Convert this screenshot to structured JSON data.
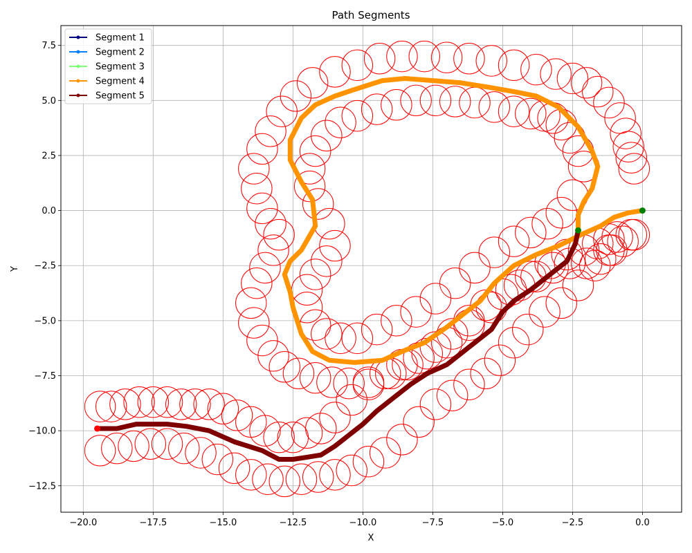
{
  "chart_data": {
    "type": "line",
    "title": "Path Segments",
    "xlabel": "X",
    "ylabel": "Y",
    "xlim": [
      -20.8,
      1.4
    ],
    "ylim": [
      -13.7,
      8.4
    ],
    "xticks": [
      -20.0,
      -17.5,
      -15.0,
      -12.5,
      -10.0,
      -7.5,
      -5.0,
      -2.5,
      0.0
    ],
    "yticks": [
      -12.5,
      -10.0,
      -7.5,
      -5.0,
      -2.5,
      0.0,
      2.5,
      5.0,
      7.5
    ],
    "xtick_labels": [
      "−20.0",
      "−17.5",
      "−15.0",
      "−12.5",
      "−10.0",
      "−7.5",
      "−5.0",
      "−2.5",
      "0.0"
    ],
    "ytick_labels": [
      "−12.5",
      "−10.0",
      "−7.5",
      "−5.0",
      "−2.5",
      "0.0",
      "2.5",
      "5.0",
      "7.5"
    ],
    "grid": true,
    "legend_position": "top-left",
    "circle_color": "#ff0000",
    "circle_radius": 0.55,
    "series": [
      {
        "name": "Segment 1",
        "color": "#00007f",
        "x": [],
        "y": []
      },
      {
        "name": "Segment 2",
        "color": "#0080ff",
        "x": [],
        "y": []
      },
      {
        "name": "Segment 3",
        "color": "#7dff7a",
        "x": [],
        "y": []
      },
      {
        "name": "Segment 4",
        "color": "#ff9400",
        "x": [
          0.0,
          -0.5,
          -1.0,
          -1.5,
          -2.2,
          -3.0,
          -3.8,
          -4.6,
          -5.3,
          -5.8,
          -6.4,
          -7.0,
          -7.8,
          -8.6,
          -9.3,
          -10.3,
          -11.2,
          -11.8,
          -12.2,
          -12.5,
          -12.6,
          -12.8,
          -12.6,
          -12.2,
          -11.7,
          -11.8,
          -12.2,
          -12.6,
          -12.6,
          -12.2,
          -11.7,
          -11.0,
          -10.3,
          -9.3,
          -8.5,
          -7.5,
          -6.5,
          -5.5,
          -4.6,
          -3.8,
          -3.0,
          -2.3,
          -1.8,
          -1.6,
          -1.8,
          -2.1,
          -2.3,
          -2.3
        ],
        "y": [
          0.0,
          -0.1,
          -0.3,
          -0.7,
          -1.1,
          -1.6,
          -2.0,
          -2.5,
          -3.3,
          -4.1,
          -4.7,
          -5.3,
          -6.0,
          -6.4,
          -6.8,
          -6.9,
          -6.8,
          -6.4,
          -5.6,
          -4.4,
          -3.7,
          -2.9,
          -2.3,
          -1.8,
          -0.7,
          0.5,
          1.3,
          2.3,
          3.2,
          4.2,
          4.8,
          5.2,
          5.5,
          5.9,
          6.0,
          5.9,
          5.8,
          5.6,
          5.4,
          5.2,
          4.7,
          3.8,
          2.7,
          2.0,
          1.0,
          0.4,
          -0.2,
          -0.9
        ]
      },
      {
        "name": "Segment 5",
        "color": "#7f0000",
        "x": [
          -2.3,
          -2.4,
          -2.7,
          -3.2,
          -4.0,
          -4.6,
          -5.0,
          -5.4,
          -6.3,
          -7.0,
          -7.7,
          -8.3,
          -8.9,
          -9.5,
          -10.0,
          -10.6,
          -11.0,
          -11.5,
          -12.0,
          -12.5,
          -13.0,
          -13.6,
          -14.6,
          -15.5,
          -16.3,
          -17.0,
          -17.5,
          -18.1,
          -18.8,
          -19.5
        ],
        "y": [
          -0.9,
          -1.5,
          -2.3,
          -2.8,
          -3.6,
          -4.1,
          -4.6,
          -5.4,
          -6.3,
          -7.0,
          -7.4,
          -7.9,
          -8.5,
          -9.1,
          -9.7,
          -10.3,
          -10.7,
          -11.1,
          -11.2,
          -11.3,
          -11.3,
          -10.9,
          -10.5,
          -10.0,
          -9.8,
          -9.7,
          -9.7,
          -9.7,
          -9.9,
          -9.9
        ]
      }
    ],
    "markers": [
      {
        "x": 0.0,
        "y": 0.0,
        "color": "#008000"
      },
      {
        "x": -2.3,
        "y": -0.9,
        "color": "#008000"
      },
      {
        "x": -19.5,
        "y": -9.9,
        "color": "#ff0000"
      }
    ],
    "circles_outer": {
      "x": [
        -0.3,
        -0.4,
        -0.5,
        -0.6,
        -0.8,
        -1.2,
        -1.6,
        -2.0,
        -2.5,
        -3.1,
        -3.8,
        -4.6,
        -5.4,
        -6.2,
        -7.0,
        -7.8,
        -8.6,
        -9.4,
        -10.2,
        -11.0,
        -11.8,
        -12.4,
        -12.9,
        -13.3,
        -13.6,
        -13.9,
        -13.8,
        -13.6,
        -13.3,
        -13.0,
        -13.2,
        -13.5,
        -13.8,
        -14.0,
        -13.9,
        -13.6,
        -13.2,
        -12.8,
        -12.3,
        -11.7,
        -11.1,
        -10.5,
        -9.8,
        -9.0,
        -8.4,
        -7.7,
        -7.0,
        -6.2,
        -5.4,
        -4.7,
        -4.0,
        -3.3,
        -2.7,
        -2.1,
        -1.6,
        -1.2,
        -0.9,
        -0.4
      ],
      "y": [
        1.9,
        2.4,
        2.9,
        3.5,
        4.2,
        4.9,
        5.4,
        5.8,
        6.0,
        6.2,
        6.4,
        6.6,
        6.8,
        6.9,
        6.95,
        7.0,
        7.0,
        6.9,
        6.6,
        6.3,
        5.8,
        5.2,
        4.5,
        3.6,
        2.8,
        1.9,
        1.0,
        0.1,
        -0.6,
        -1.1,
        -1.8,
        -2.6,
        -3.3,
        -4.2,
        -5.1,
        -5.9,
        -6.6,
        -7.1,
        -7.4,
        -7.6,
        -7.8,
        -7.85,
        -7.8,
        -7.4,
        -7.0,
        -6.5,
        -6.0,
        -5.2,
        -4.4,
        -3.6,
        -3.0,
        -2.4,
        -2.0,
        -1.8,
        -1.5,
        -1.3,
        -1.2,
        -1.1
      ]
    },
    "circles_inner": {
      "x": [
        -2.1,
        -2.3,
        -2.6,
        -2.9,
        -3.2,
        -3.5,
        -4.0,
        -4.6,
        -5.3,
        -6.0,
        -6.7,
        -7.4,
        -8.1,
        -8.8,
        -9.5,
        -10.2,
        -10.8,
        -11.3,
        -11.7,
        -11.9,
        -11.9,
        -11.6,
        -11.2,
        -11.0,
        -11.3,
        -11.7,
        -12.0,
        -12.0,
        -11.7,
        -11.3,
        -10.8,
        -10.2,
        -9.5,
        -8.8,
        -8.1,
        -7.4,
        -6.7,
        -6.0,
        -5.3,
        -4.6,
        -4.0,
        -3.4,
        -2.9,
        -2.5
      ],
      "y": [
        2.0,
        2.7,
        3.3,
        3.9,
        4.2,
        4.3,
        4.4,
        4.5,
        4.7,
        4.9,
        4.95,
        5.0,
        5.0,
        4.8,
        4.6,
        4.3,
        4.0,
        3.4,
        2.7,
        1.9,
        1.1,
        0.3,
        -0.6,
        -1.6,
        -2.3,
        -2.9,
        -3.6,
        -4.4,
        -5.2,
        -5.6,
        -5.8,
        -5.8,
        -5.4,
        -5.0,
        -4.6,
        -4.0,
        -3.3,
        -2.6,
        -1.9,
        -1.4,
        -1.0,
        -0.6,
        -0.1,
        0.7
      ]
    },
    "circles_upper": {
      "x": [
        -0.3,
        -0.7,
        -1.1,
        -1.5,
        -2.0,
        -2.6,
        -3.2,
        -3.8,
        -4.4,
        -5.0,
        -5.6,
        -6.2,
        -6.8,
        -7.4,
        -8.0,
        -8.6,
        -9.2,
        -9.8,
        -10.4,
        -11.0,
        -11.5,
        -12.0,
        -12.5,
        -13.0,
        -13.5,
        -14.0,
        -14.5,
        -15.0,
        -15.5,
        -16.0,
        -16.5,
        -17.0,
        -17.5,
        -18.0,
        -18.5,
        -19.0,
        -19.4
      ],
      "y": [
        -1.1,
        -1.4,
        -1.8,
        -2.2,
        -2.4,
        -2.4,
        -2.6,
        -3.0,
        -3.4,
        -3.8,
        -4.3,
        -5.0,
        -5.6,
        -6.2,
        -6.7,
        -7.0,
        -7.4,
        -7.9,
        -8.6,
        -9.4,
        -9.9,
        -10.1,
        -10.3,
        -10.3,
        -10.0,
        -9.6,
        -9.3,
        -9.0,
        -8.8,
        -8.8,
        -8.8,
        -8.7,
        -8.7,
        -8.7,
        -8.8,
        -8.9,
        -8.9
      ]
    },
    "circles_lower": {
      "x": [
        -1.2,
        -1.7,
        -2.3,
        -2.9,
        -3.5,
        -4.1,
        -4.6,
        -5.1,
        -5.6,
        -6.2,
        -6.8,
        -7.4,
        -8.0,
        -8.6,
        -9.2,
        -9.8,
        -10.4,
        -11.0,
        -11.6,
        -12.2,
        -12.8,
        -13.4,
        -14.0,
        -14.6,
        -15.2,
        -15.8,
        -16.4,
        -17.0,
        -17.6,
        -18.2,
        -18.8,
        -19.4
      ],
      "y": [
        -1.8,
        -2.5,
        -3.4,
        -4.2,
        -4.6,
        -5.4,
        -6.0,
        -6.8,
        -7.4,
        -7.9,
        -8.4,
        -8.8,
        -9.6,
        -10.4,
        -11.0,
        -11.4,
        -11.8,
        -12.0,
        -12.1,
        -12.2,
        -12.3,
        -12.2,
        -12.0,
        -11.7,
        -11.3,
        -11.0,
        -10.8,
        -10.6,
        -10.6,
        -10.7,
        -10.8,
        -10.9
      ]
    }
  }
}
